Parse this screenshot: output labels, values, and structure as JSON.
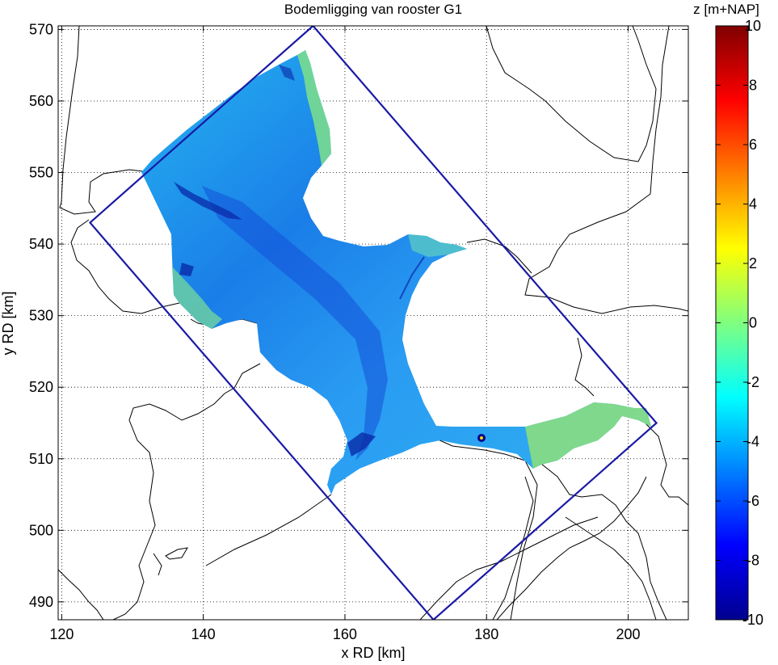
{
  "chart_data": {
    "type": "heatmap",
    "title": "Bodemligging van rooster G1",
    "xlabel": "x RD [km]",
    "ylabel": "y RD [km]",
    "xlim": [
      119.5,
      208.5
    ],
    "ylim": [
      487.5,
      570.5
    ],
    "xticks": [
      120,
      140,
      160,
      180,
      200
    ],
    "yticks": [
      490,
      500,
      510,
      520,
      530,
      540,
      550,
      560,
      570
    ],
    "grid": true,
    "colorbar": {
      "label": "z [m+NAP]",
      "limits": [
        -10,
        10
      ],
      "ticks": [
        10,
        8,
        6,
        4,
        2,
        0,
        -2,
        -4,
        -6,
        -8,
        -10
      ],
      "colormap": "jet"
    },
    "grid_boundary_km": [
      [
        124,
        543
      ],
      [
        155.5,
        570.5
      ],
      [
        204,
        515
      ],
      [
        172.5,
        487.5
      ]
    ],
    "dominant_depth_m": -5,
    "shallow_flats_depth_m": -1,
    "channel_depth_m": -9,
    "coastline_color": "#000000",
    "boundary_color": "#1a1aa6"
  }
}
